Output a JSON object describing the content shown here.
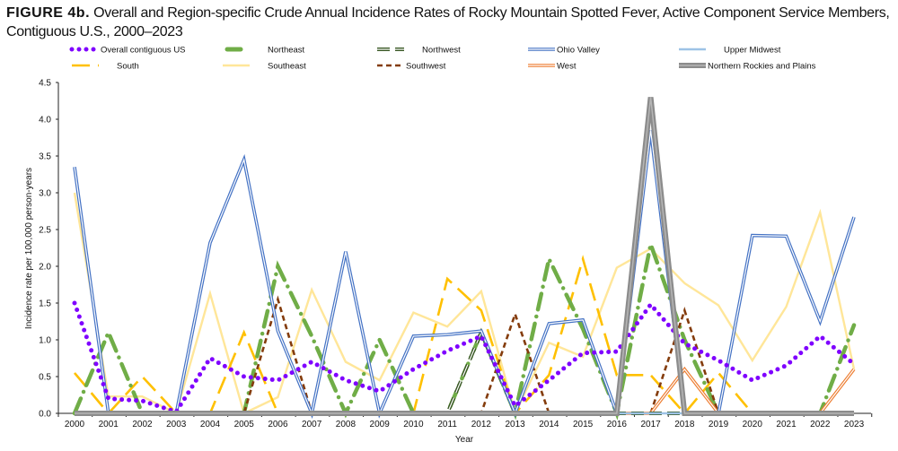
{
  "chart_data": {
    "type": "line",
    "title_label": "FIGURE 4b.",
    "title": "Overall and Region-specific Crude Annual Incidence Rates of Rocky Mountain Spotted Fever, Active Component Service Members, Contiguous U.S., 2000–2023",
    "xlabel": "Year",
    "ylabel": "Incidence rate per 100,000 person-years",
    "ylim": [
      0,
      4.5
    ],
    "yticks": [
      "0.0",
      "0.5",
      "1.0",
      "1.5",
      "2.0",
      "2.5",
      "3.0",
      "3.5",
      "4.0",
      "4.5"
    ],
    "legend_placement": "top",
    "grid": false,
    "x": [
      2000,
      2001,
      2002,
      2003,
      2004,
      2005,
      2006,
      2007,
      2008,
      2009,
      2010,
      2011,
      2012,
      2013,
      2014,
      2015,
      2016,
      2017,
      2018,
      2019,
      2020,
      2021,
      2022,
      2023
    ],
    "series": [
      {
        "name": "Overall contiguous US",
        "color": "#7f00ff",
        "style": "dotted",
        "values": [
          1.5,
          0.2,
          0.17,
          0.02,
          0.75,
          0.5,
          0.45,
          0.7,
          0.45,
          0.3,
          0.6,
          0.85,
          1.05,
          0.1,
          0.45,
          0.82,
          0.84,
          1.48,
          0.95,
          0.72,
          0.45,
          0.65,
          1.05,
          0.67
        ]
      },
      {
        "name": "Northeast",
        "color": "#70ad47",
        "style": "dash-dot",
        "values": [
          0,
          1.1,
          0,
          0,
          0,
          0,
          2.0,
          1.05,
          0,
          1.0,
          0,
          0,
          1.1,
          0,
          2.1,
          1.15,
          0,
          2.3,
          1.0,
          0,
          0,
          0,
          0,
          1.2
        ]
      },
      {
        "name": "Northwest",
        "color": "#375623",
        "style": "double-dash",
        "values": [
          0,
          0,
          0,
          0,
          0,
          0,
          0,
          0,
          0,
          0,
          0,
          0,
          1.1,
          0,
          0,
          0,
          0,
          0,
          0,
          0,
          0,
          0,
          0,
          0
        ]
      },
      {
        "name": "Ohio Valley",
        "color": "#4472c4",
        "style": "double",
        "values": [
          3.35,
          0,
          0,
          0,
          2.32,
          3.45,
          1.12,
          0,
          2.2,
          0,
          1.05,
          1.07,
          1.12,
          0,
          1.22,
          1.27,
          0,
          3.85,
          0,
          0,
          2.42,
          2.41,
          1.25,
          2.67
        ]
      },
      {
        "name": "Upper Midwest",
        "color": "#9dc3e6",
        "style": "solid",
        "values": [
          0,
          0,
          0,
          0,
          0,
          0,
          0,
          0,
          0,
          0,
          0,
          0,
          0,
          0,
          0,
          0,
          0,
          0,
          0,
          0,
          0,
          0,
          0,
          0
        ]
      },
      {
        "name": "South",
        "color": "#ffc000",
        "style": "long-dash",
        "values": [
          0.55,
          0,
          0.5,
          0,
          0,
          1.1,
          0,
          0,
          0,
          0,
          0,
          1.83,
          1.4,
          0,
          0.52,
          2.1,
          0.52,
          0.52,
          0,
          0.55,
          0,
          0,
          0,
          0
        ]
      },
      {
        "name": "Southeast",
        "color": "#ffe699",
        "style": "solid",
        "values": [
          3.0,
          0.23,
          0.23,
          0,
          1.63,
          0,
          0.22,
          1.68,
          0.7,
          0.45,
          1.37,
          1.18,
          1.66,
          0,
          0.96,
          0.77,
          1.98,
          2.24,
          1.77,
          1.47,
          0.72,
          1.45,
          2.73,
          0.6
        ]
      },
      {
        "name": "Southwest",
        "color": "#843c0c",
        "style": "dashed",
        "values": [
          0,
          0,
          0,
          0,
          0,
          0,
          1.55,
          0,
          0,
          0,
          0,
          0,
          0,
          1.35,
          0,
          0,
          0,
          0,
          1.4,
          0,
          0,
          0,
          0,
          0
        ]
      },
      {
        "name": "West",
        "color": "#ed7d31",
        "style": "double",
        "values": [
          0,
          0,
          0,
          0,
          0,
          0,
          0,
          0,
          0,
          0,
          0,
          0,
          0,
          0,
          0,
          0,
          0,
          0,
          0.6,
          0,
          0,
          0,
          0,
          0.6
        ]
      },
      {
        "name": "Northern Rockies and Plains",
        "color": "#8c8c8c",
        "style": "thick-double",
        "values": [
          0,
          0,
          0,
          0,
          0,
          0,
          0,
          0,
          0,
          0,
          0,
          0,
          0,
          0,
          0,
          0,
          0,
          4.3,
          0,
          0,
          0,
          0,
          0,
          0
        ]
      }
    ]
  }
}
